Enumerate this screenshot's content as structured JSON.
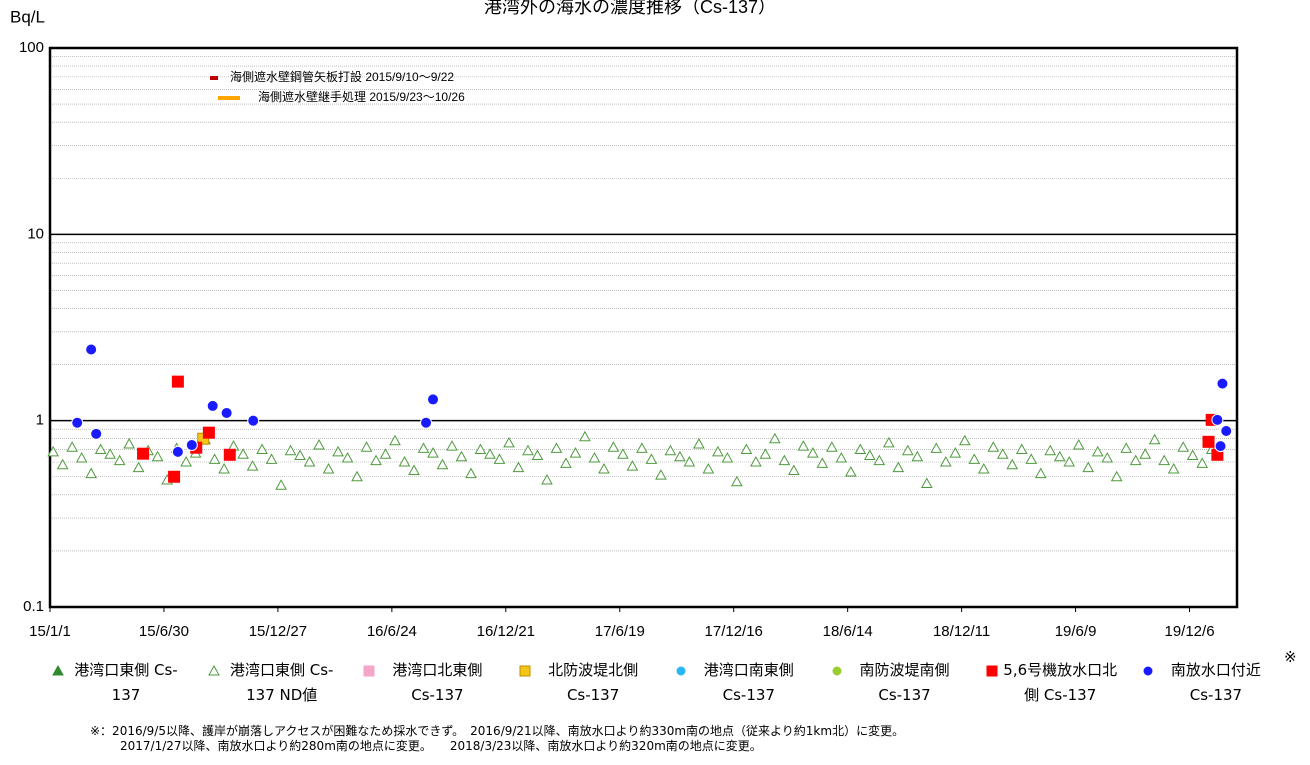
{
  "chart_data": {
    "type": "scatter",
    "title": "港湾外の海水の濃度推移（Cs-137）",
    "y_label": "Bq/L",
    "log_y": true,
    "xlim": [
      0,
      1875
    ],
    "xticks": [
      {
        "value": 0,
        "label": "15/1/1"
      },
      {
        "value": 180,
        "label": "15/6/30"
      },
      {
        "value": 360,
        "label": "15/12/27"
      },
      {
        "value": 540,
        "label": "16/6/24"
      },
      {
        "value": 720,
        "label": "16/12/21"
      },
      {
        "value": 900,
        "label": "17/6/19"
      },
      {
        "value": 1080,
        "label": "17/12/16"
      },
      {
        "value": 1260,
        "label": "18/6/14"
      },
      {
        "value": 1440,
        "label": "18/12/11"
      },
      {
        "value": 1620,
        "label": "19/6/9"
      },
      {
        "value": 1800,
        "label": "19/12/6"
      }
    ],
    "ylim": [
      0.1,
      100
    ],
    "yticks": [
      0.1,
      1,
      10,
      100
    ],
    "grid": true,
    "annotations": [
      {
        "text": "海側遮水壁鋼管矢板打設 2015/9/10～9/22",
        "color": "#c00000"
      },
      {
        "text": "海側遮水壁継手処理 2015/9/23～10/26",
        "color": "#ffa500"
      }
    ],
    "series": [
      {
        "name": "港湾口東側 Cs-137",
        "marker": "triangle",
        "filled": true,
        "color": "#2e8b2e",
        "x": [],
        "values": []
      },
      {
        "name": "港湾口東側 Cs-137 ND値",
        "marker": "triangle",
        "filled": false,
        "color": "#4f9a3f",
        "x": [
          5,
          20,
          35,
          50,
          65,
          80,
          95,
          110,
          125,
          140,
          155,
          170,
          185,
          200,
          215,
          230,
          245,
          260,
          275,
          290,
          305,
          320,
          335,
          350,
          365,
          380,
          395,
          410,
          425,
          440,
          455,
          470,
          485,
          500,
          515,
          530,
          545,
          560,
          575,
          590,
          605,
          620,
          635,
          650,
          665,
          680,
          695,
          710,
          725,
          740,
          755,
          770,
          785,
          800,
          815,
          830,
          845,
          860,
          875,
          890,
          905,
          920,
          935,
          950,
          965,
          980,
          995,
          1010,
          1025,
          1040,
          1055,
          1070,
          1085,
          1100,
          1115,
          1130,
          1145,
          1160,
          1175,
          1190,
          1205,
          1220,
          1235,
          1250,
          1265,
          1280,
          1295,
          1310,
          1325,
          1340,
          1355,
          1370,
          1385,
          1400,
          1415,
          1430,
          1445,
          1460,
          1475,
          1490,
          1505,
          1520,
          1535,
          1550,
          1565,
          1580,
          1595,
          1610,
          1625,
          1640,
          1655,
          1670,
          1685,
          1700,
          1715,
          1730,
          1745,
          1760,
          1775,
          1790,
          1805,
          1820,
          1835
        ],
        "values": [
          0.68,
          0.58,
          0.72,
          0.63,
          0.52,
          0.7,
          0.66,
          0.61,
          0.75,
          0.56,
          0.69,
          0.64,
          0.48,
          0.71,
          0.6,
          0.67,
          0.79,
          0.62,
          0.55,
          0.73,
          0.66,
          0.57,
          0.7,
          0.62,
          0.45,
          0.69,
          0.65,
          0.6,
          0.74,
          0.55,
          0.68,
          0.63,
          0.5,
          0.72,
          0.61,
          0.66,
          0.78,
          0.6,
          0.54,
          0.71,
          0.67,
          0.58,
          0.73,
          0.64,
          0.52,
          0.7,
          0.66,
          0.62,
          0.76,
          0.56,
          0.69,
          0.65,
          0.48,
          0.71,
          0.59,
          0.67,
          0.82,
          0.63,
          0.55,
          0.72,
          0.66,
          0.57,
          0.71,
          0.62,
          0.51,
          0.69,
          0.64,
          0.6,
          0.75,
          0.55,
          0.68,
          0.63,
          0.47,
          0.7,
          0.6,
          0.66,
          0.8,
          0.61,
          0.54,
          0.73,
          0.67,
          0.59,
          0.72,
          0.63,
          0.53,
          0.7,
          0.65,
          0.61,
          0.76,
          0.56,
          0.69,
          0.64,
          0.46,
          0.71,
          0.6,
          0.67,
          0.78,
          0.62,
          0.55,
          0.72,
          0.66,
          0.58,
          0.7,
          0.62,
          0.52,
          0.69,
          0.64,
          0.6,
          0.74,
          0.56,
          0.68,
          0.63,
          0.5,
          0.71,
          0.61,
          0.66,
          0.79,
          0.61,
          0.55,
          0.72,
          0.65,
          0.59,
          0.7
        ]
      },
      {
        "name": "港湾口北東側 Cs-137",
        "marker": "square",
        "filled": true,
        "color": "#f4a6c8",
        "x": [],
        "values": []
      },
      {
        "name": "北防波堤北側 Cs-137",
        "marker": "square",
        "filled": true,
        "color": "#f5c518",
        "x": [
          242
        ],
        "values": [
          0.8
        ]
      },
      {
        "name": "港湾口南東側 Cs-137",
        "marker": "circle",
        "filled": true,
        "color": "#29b6f6",
        "x": [],
        "values": []
      },
      {
        "name": "南防波堤南側 Cs-137",
        "marker": "circle",
        "filled": true,
        "color": "#9acd32",
        "x": [],
        "values": []
      },
      {
        "name": "5,6号機放水口北側 Cs-137",
        "marker": "square",
        "filled": true,
        "color": "#ff0000",
        "x": [
          147,
          202,
          196,
          231,
          251,
          284,
          1835,
          1830,
          1844
        ],
        "values": [
          0.665,
          1.62,
          0.5,
          0.716,
          0.862,
          0.656,
          1.01,
          0.77,
          0.656
        ]
      },
      {
        "name": "南放水口付近 Cs-137",
        "marker": "circle",
        "filled": true,
        "color": "#1a1aff",
        "x": [
          43,
          65,
          73,
          202,
          224,
          257,
          279,
          321,
          594,
          605,
          1844,
          1852,
          1858,
          1849
        ],
        "values": [
          0.975,
          2.41,
          0.85,
          0.68,
          0.74,
          1.2,
          1.1,
          1.0,
          0.975,
          1.3,
          1.01,
          1.58,
          0.88,
          0.73
        ]
      }
    ],
    "legend_note_mark": "※",
    "notes": [
      "※：2016/9/5以降、護岸が崩落しアクセスが困難なため採水できず。　2016/9/21以降、南放水口より約330m南の地点（従来より約1km北）に変更。",
      "2017/1/27以降、南放水口より約280m南の地点に変更。　　2018/3/23以降、南放水口より約320m南の地点に変更。"
    ]
  }
}
